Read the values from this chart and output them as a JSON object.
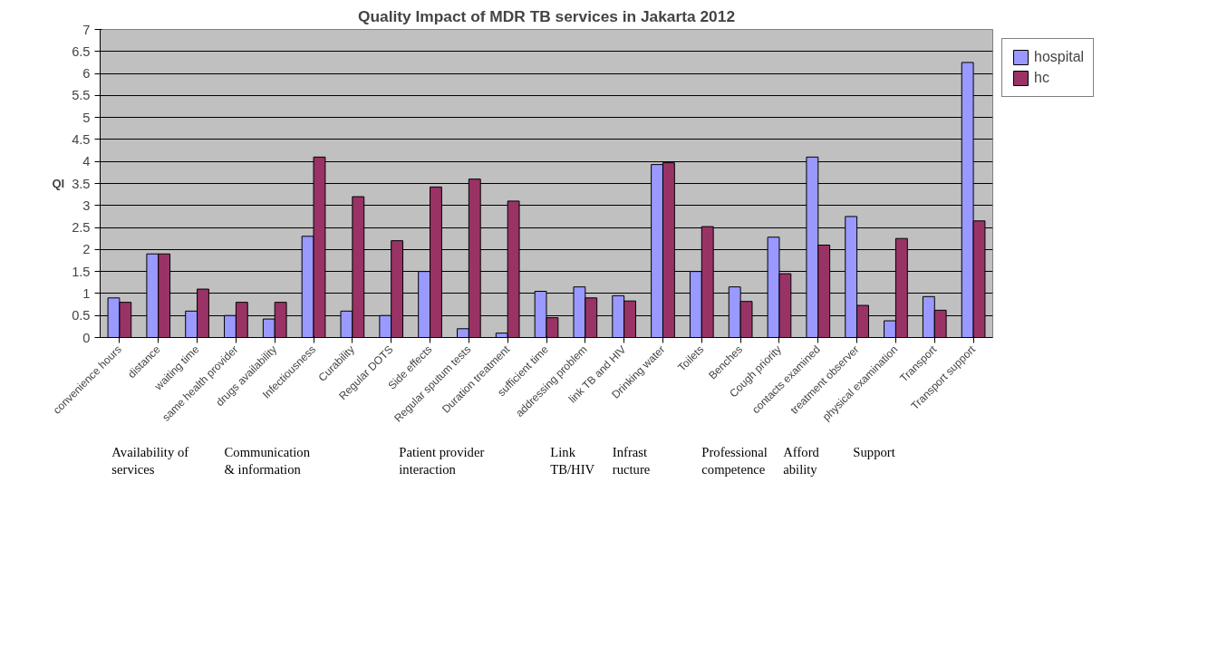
{
  "chart_data": {
    "type": "bar",
    "title": "Quality Impact of MDR TB services in Jakarta 2012",
    "ylabel": "QI",
    "categories": [
      "convenience hours",
      "distance",
      "waiting time",
      "same health provider",
      "drugs availability",
      "Infectiousness",
      "Curability",
      "Regular DOTS",
      "Side effects",
      "Regular sputum tests",
      "Duration treatment",
      "sufficient time",
      "addressing problem",
      "link TB and HIV",
      "Drinking water",
      "Toilets",
      "Benches",
      "Cough priority",
      "contacts examined",
      "treatment observer",
      "physical examination",
      "Transport",
      "Transport support"
    ],
    "series": [
      {
        "name": "hospital",
        "color": "#9999ff",
        "values": [
          0.9,
          1.9,
          0.6,
          0.5,
          0.42,
          2.3,
          0.6,
          0.5,
          1.5,
          0.2,
          0.1,
          1.05,
          1.15,
          0.95,
          3.93,
          1.5,
          1.15,
          2.28,
          4.1,
          2.75,
          0.38,
          0.93,
          6.25
        ]
      },
      {
        "name": "hc",
        "color": "#993366",
        "values": [
          0.8,
          1.9,
          1.1,
          0.8,
          0.8,
          4.1,
          3.2,
          2.2,
          3.42,
          3.6,
          3.1,
          0.45,
          0.9,
          0.83,
          3.97,
          2.52,
          0.82,
          1.45,
          2.1,
          0.73,
          2.25,
          0.62,
          2.65
        ]
      }
    ],
    "ylim": [
      0,
      7
    ],
    "yticks": [
      0,
      0.5,
      1,
      1.5,
      2,
      2.5,
      3,
      3.5,
      4,
      4.5,
      5,
      5.5,
      6,
      6.5,
      7
    ],
    "grid": "y",
    "legend": "right",
    "annotations": [
      "Availability of\nservices",
      "Communication\n& information",
      "Patient provider\ninteraction",
      "Link\nTB/HIV",
      "Infrast\nructure",
      "Professional\ncompetence",
      "Afford\nability",
      "Support"
    ]
  }
}
